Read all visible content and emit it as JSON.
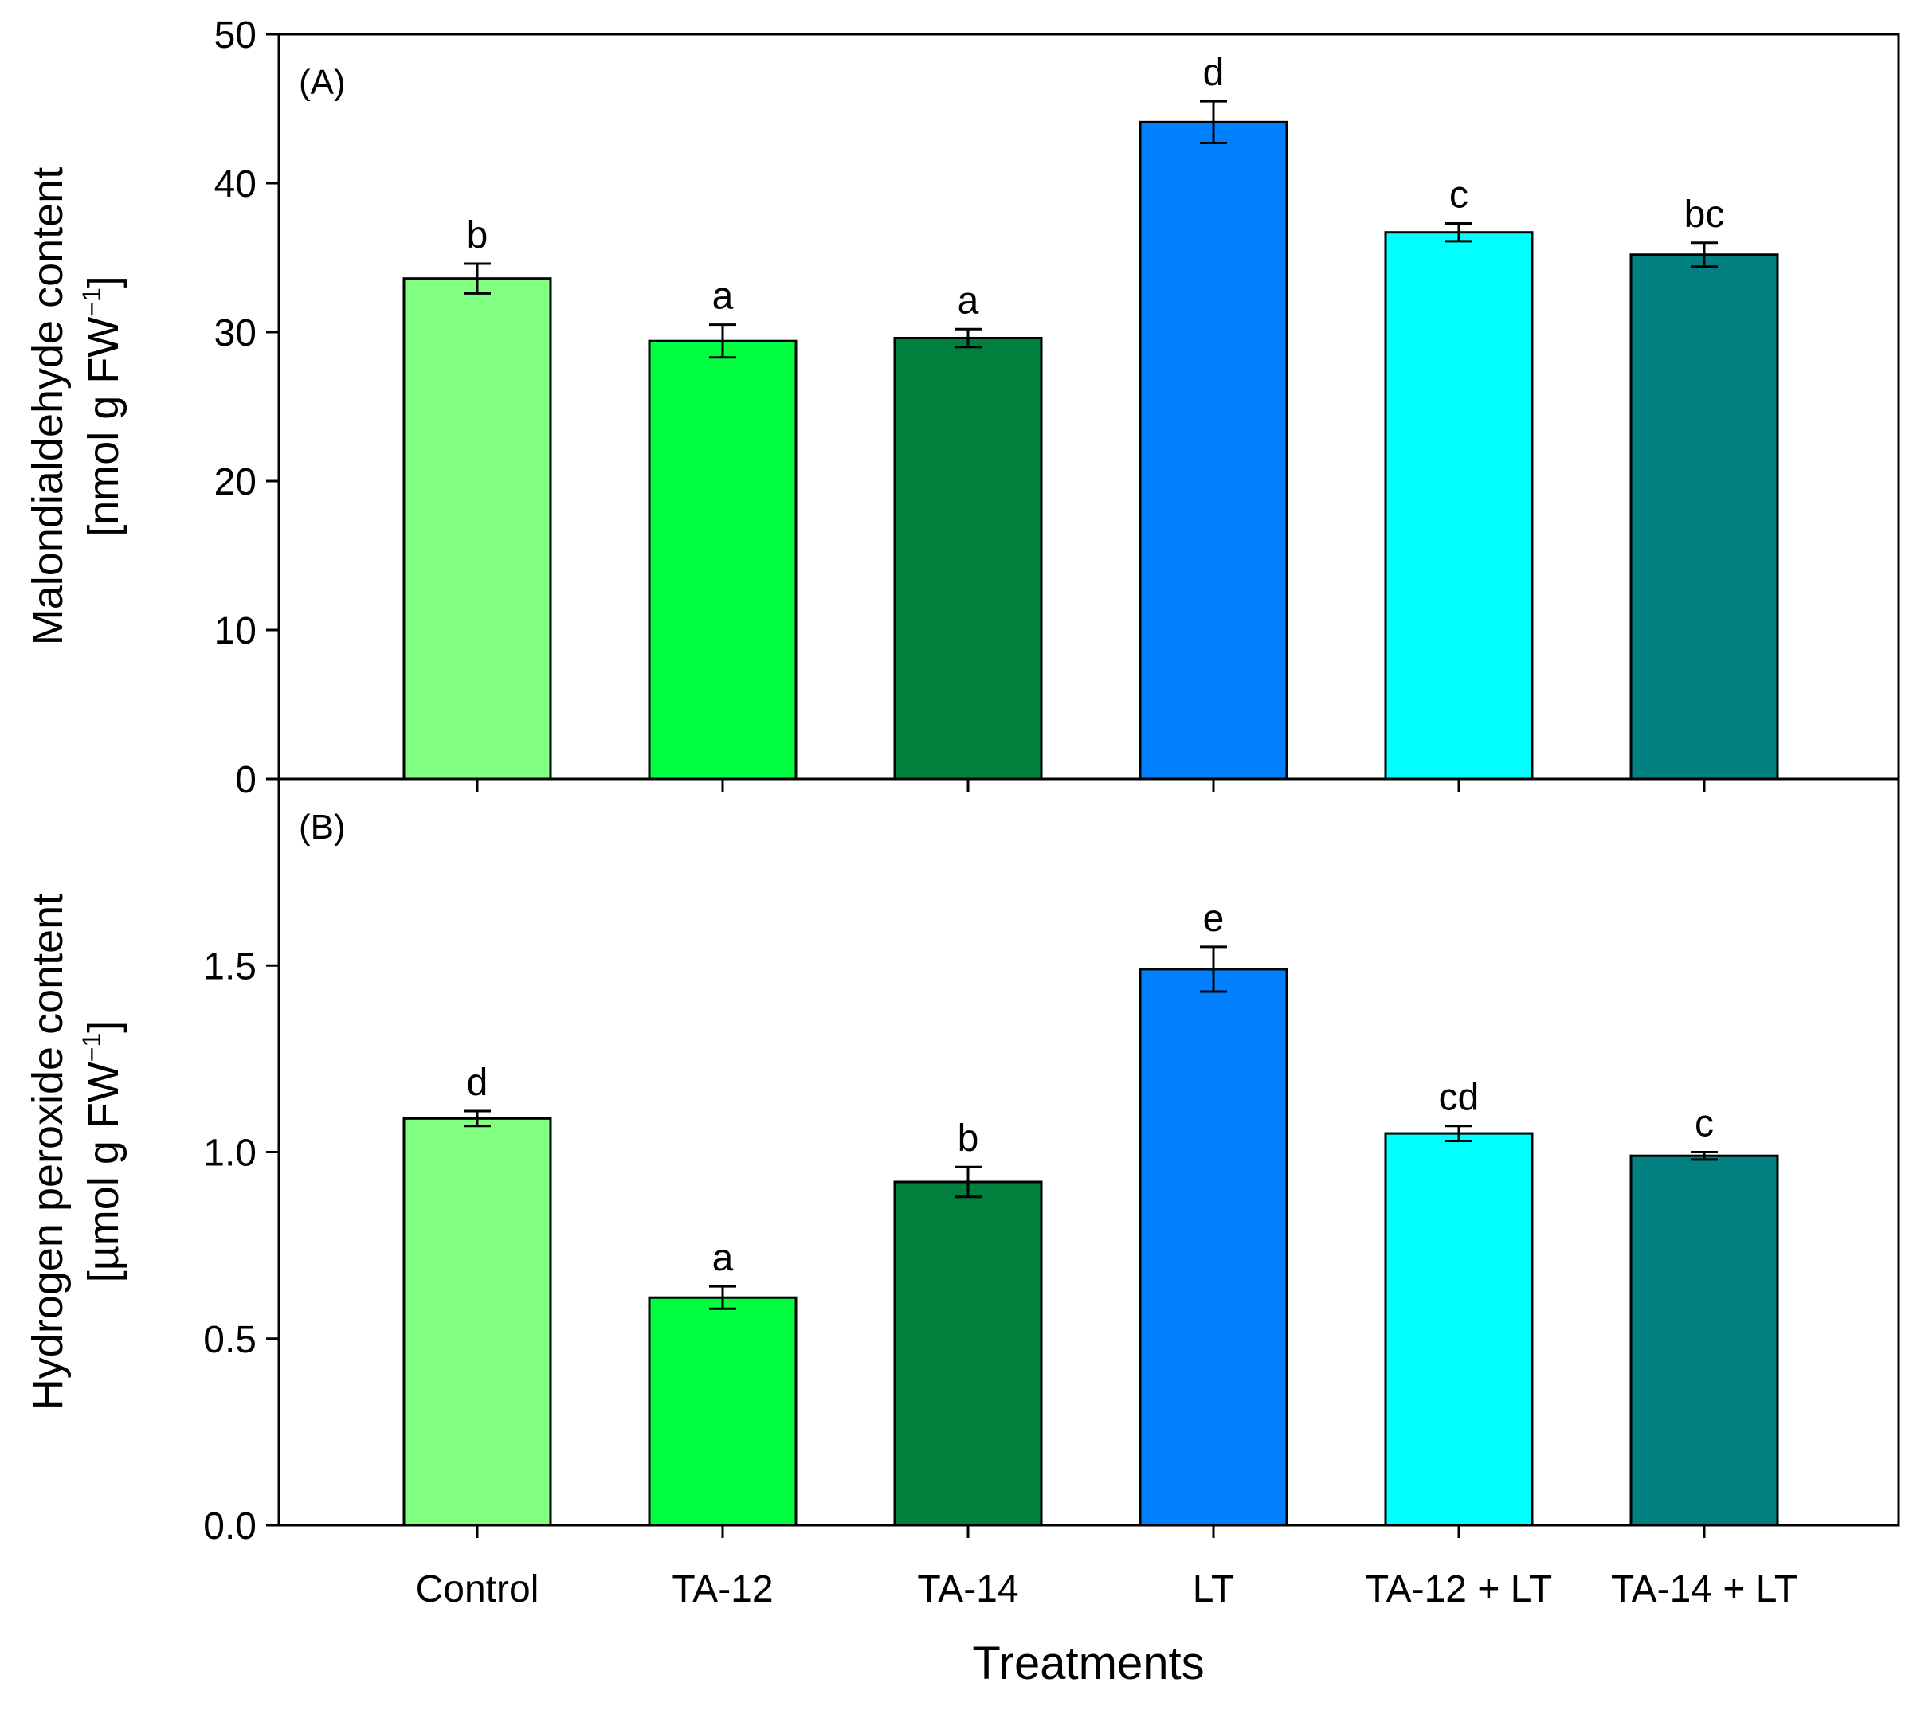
{
  "chart_data": [
    {
      "type": "bar",
      "panel": "(A)",
      "title": "",
      "ylabel_line1": "Malondialdehyde content",
      "ylabel_line2_prefix": "[nmol g FW",
      "ylabel_sup": "−1",
      "ylabel_line2_suffix": "]",
      "categories": [
        "Control",
        "TA-12",
        "TA-14",
        "LT",
        "TA-12 + LT",
        "TA-14 + LT"
      ],
      "values": [
        33.6,
        29.4,
        29.6,
        44.1,
        36.7,
        35.2
      ],
      "errors": [
        1.0,
        1.1,
        0.6,
        1.4,
        0.6,
        0.8
      ],
      "significance": [
        "b",
        "a",
        "a",
        "d",
        "c",
        "bc"
      ],
      "colors": [
        "#80ff80",
        "#00ff40",
        "#00803c",
        "#0080ff",
        "#00ffff",
        "#008080"
      ],
      "ylim": [
        0,
        50
      ],
      "yticks": [
        0,
        10,
        20,
        30,
        40,
        50
      ],
      "ytick_labels": [
        "0",
        "10",
        "20",
        "30",
        "40",
        "50"
      ]
    },
    {
      "type": "bar",
      "panel": "(B)",
      "title": "",
      "ylabel_line1": "Hydrogen peroxide  content",
      "ylabel_line2_prefix": "[µmol g FW",
      "ylabel_sup": "−1",
      "ylabel_line2_suffix": "]",
      "categories": [
        "Control",
        "TA-12",
        "TA-14",
        "LT",
        "TA-12 + LT",
        "TA-14 + LT"
      ],
      "values": [
        1.09,
        0.61,
        0.92,
        1.49,
        1.05,
        0.99
      ],
      "errors": [
        0.02,
        0.03,
        0.04,
        0.06,
        0.02,
        0.01
      ],
      "significance": [
        "d",
        "a",
        "b",
        "e",
        "cd",
        "c"
      ],
      "colors": [
        "#80ff80",
        "#00ff40",
        "#00803c",
        "#0080ff",
        "#00ffff",
        "#008080"
      ],
      "ylim": [
        0,
        2.0
      ],
      "yticks": [
        0,
        0.5,
        1.0,
        1.5
      ],
      "ytick_labels": [
        "0.0",
        "0.5",
        "1.0",
        "1.5"
      ]
    }
  ],
  "xlabel": "Treatments"
}
